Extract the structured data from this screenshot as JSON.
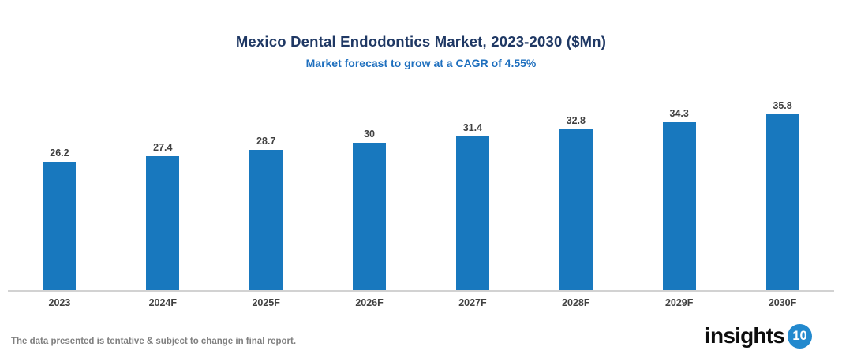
{
  "header": {
    "title": "Mexico Dental Endodontics Market, 2023-2030 ($Mn)",
    "subtitle": "Market forecast to grow at a CAGR of 4.55%"
  },
  "chart_data": {
    "type": "bar",
    "categories": [
      "2023",
      "2024F",
      "2025F",
      "2026F",
      "2027F",
      "2028F",
      "2029F",
      "2030F"
    ],
    "values": [
      26.2,
      27.4,
      28.7,
      30,
      31.4,
      32.8,
      34.3,
      35.8
    ],
    "title": "Mexico Dental Endodontics Market, 2023-2030 ($Mn)",
    "subtitle": "Market forecast to grow at a CAGR of 4.55%",
    "xlabel": "",
    "ylabel": "",
    "ylim": [
      0,
      40
    ],
    "grid": false,
    "legend": "none",
    "data_labels": true,
    "bar_color": "#1878BE"
  },
  "colors": {
    "title": "#1F3864",
    "subtitle": "#1E6FBE",
    "bar": "#1878BE",
    "value_label": "#404040",
    "x_label": "#404040",
    "axis_line": "#D2D2D2",
    "disclaimer": "#808080",
    "logo_text": "#0D0D0D",
    "logo_circle": "#2289CE"
  },
  "footer": {
    "disclaimer": "The data presented is tentative & subject to change in final report.",
    "logo_text": "insights",
    "logo_number": "10"
  }
}
